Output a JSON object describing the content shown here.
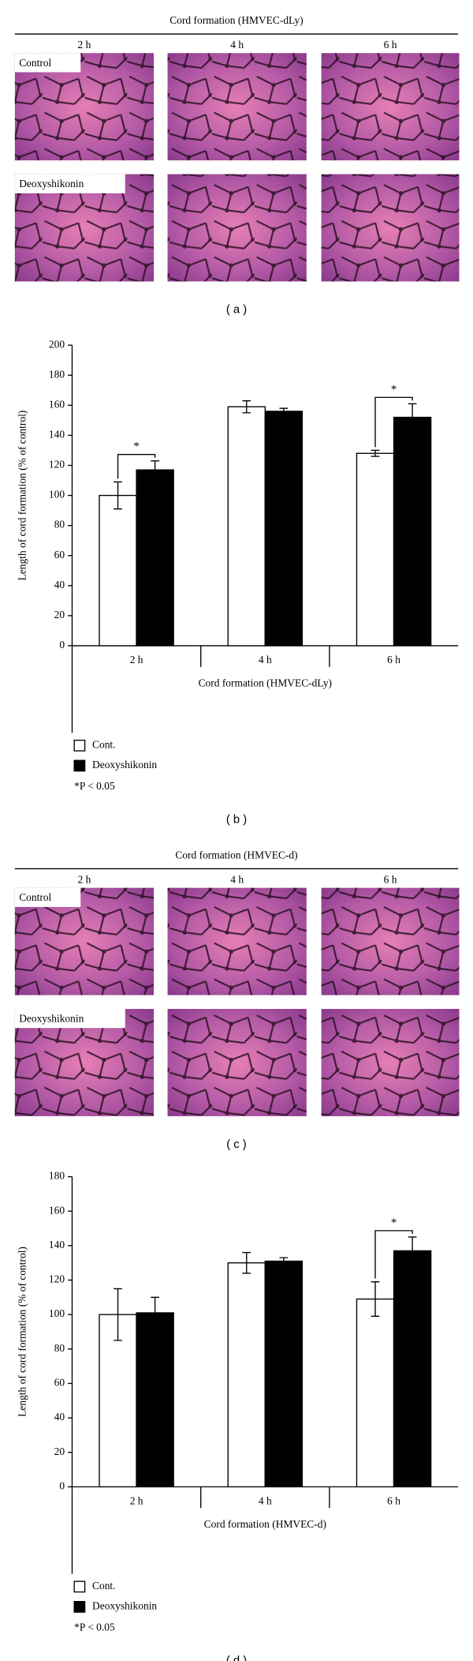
{
  "panels": [
    {
      "title": "Cord formation (HMVEC-dLy)",
      "timepoints": [
        "2 h",
        "4 h",
        "6 h"
      ],
      "rows": [
        "Control",
        "Deoxyshikonin"
      ],
      "label": "( a )"
    },
    {
      "title": "Cord formation (HMVEC-d)",
      "timepoints": [
        "2 h",
        "4 h",
        "6 h"
      ],
      "rows": [
        "Control",
        "Deoxyshikonin"
      ],
      "label": "( c )"
    }
  ],
  "chart_data": [
    {
      "type": "bar",
      "xlabel": "Cord formation (HMVEC-dLy)",
      "ylabel": "Length of cord formation (% of control)",
      "categories": [
        "2 h",
        "4 h",
        "6 h"
      ],
      "series": [
        {
          "name": "Cont.",
          "color": "#ffffff",
          "values": [
            100,
            159,
            128
          ],
          "errors": [
            9,
            4,
            2
          ]
        },
        {
          "name": "Deoxyshikonin",
          "color": "#000000",
          "values": [
            117,
            156,
            152
          ],
          "errors": [
            6,
            2,
            9
          ]
        }
      ],
      "significance": [
        "*",
        null,
        "*"
      ],
      "note": "*P < 0.05",
      "ylim": [
        0,
        200
      ],
      "yticks": [
        0,
        20,
        40,
        60,
        80,
        100,
        120,
        140,
        160,
        180,
        200
      ],
      "label": "( b )"
    },
    {
      "type": "bar",
      "xlabel": "Cord formation (HMVEC-d)",
      "ylabel": "Length of cord formation (% of control)",
      "categories": [
        "2 h",
        "4 h",
        "6 h"
      ],
      "series": [
        {
          "name": "Cont.",
          "color": "#ffffff",
          "values": [
            100,
            130,
            109
          ],
          "errors": [
            15,
            6,
            10
          ]
        },
        {
          "name": "Deoxyshikonin",
          "color": "#000000",
          "values": [
            101,
            131,
            137
          ],
          "errors": [
            9,
            2,
            8
          ]
        }
      ],
      "significance": [
        null,
        null,
        "*"
      ],
      "note": "*P < 0.05",
      "ylim": [
        0,
        180
      ],
      "yticks": [
        0,
        20,
        40,
        60,
        80,
        100,
        120,
        140,
        160,
        180
      ],
      "label": "( d )"
    }
  ]
}
